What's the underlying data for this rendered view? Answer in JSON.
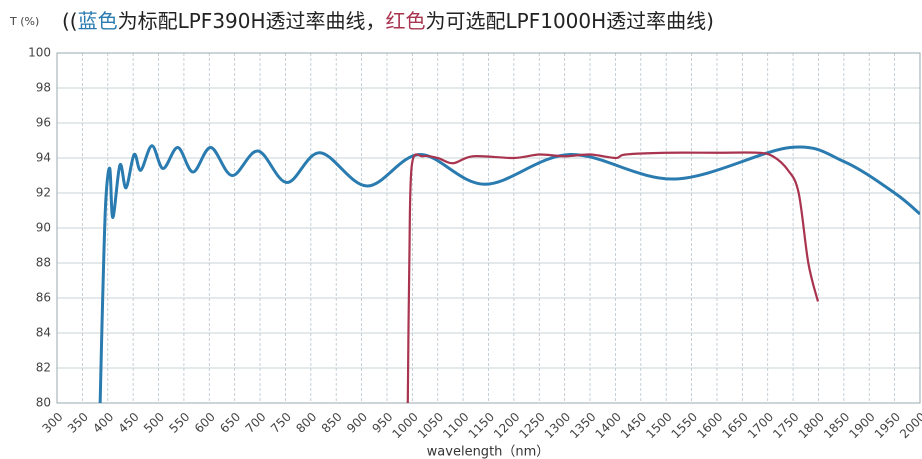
{
  "chart_data": {
    "type": "line",
    "y_label": "T (%)",
    "title_parts": [
      {
        "text": "((",
        "color": "#222222"
      },
      {
        "text": "蓝色",
        "color": "#2a7bb0"
      },
      {
        "text": "为标配LPF390H透过率曲线，",
        "color": "#222222"
      },
      {
        "text": "红色",
        "color": "#a8344f"
      },
      {
        "text": "为可选配LPF1000H透过率曲线)",
        "color": "#222222"
      }
    ],
    "x_label": "wavelength（nm）",
    "xlim": [
      300,
      2000
    ],
    "xticks": [
      300,
      350,
      400,
      450,
      500,
      550,
      600,
      650,
      700,
      750,
      800,
      850,
      900,
      950,
      1000,
      1050,
      1100,
      1150,
      1200,
      1250,
      1300,
      1350,
      1400,
      1450,
      1500,
      1550,
      1600,
      1650,
      1700,
      1750,
      1800,
      1850,
      1900,
      1950,
      2000
    ],
    "ylim": [
      80,
      100
    ],
    "yticks": [
      80,
      82,
      84,
      86,
      88,
      90,
      92,
      94,
      96,
      98,
      100
    ],
    "grid": true,
    "series": [
      {
        "name": "LPF390H",
        "color": "#2a7bb0",
        "x": [
          385,
          390,
          396,
          404,
          410,
          424,
          436,
          452,
          465,
          487,
          509,
          538,
          568,
          603,
          645,
          696,
          753,
          818,
          911,
          1015,
          1143,
          1311,
          1517,
          1744,
          1850,
          1950,
          2000
        ],
        "values": [
          80,
          86,
          91.5,
          93.4,
          90.6,
          93.6,
          92.3,
          94.2,
          93.3,
          94.7,
          93.4,
          94.6,
          93.2,
          94.6,
          93.0,
          94.4,
          92.6,
          94.3,
          92.4,
          94.2,
          92.5,
          94.2,
          92.8,
          94.6,
          93.8,
          92.0,
          90.8
        ]
      },
      {
        "name": "LPF1000H",
        "color": "#a8344f",
        "x": [
          991,
          994,
          999,
          1021,
          1050,
          1080,
          1120,
          1200,
          1250,
          1300,
          1350,
          1400,
          1420,
          1500,
          1600,
          1680,
          1710,
          1740,
          1761,
          1780,
          1799
        ],
        "values": [
          80,
          88,
          93.6,
          94.1,
          94.0,
          93.7,
          94.1,
          94.0,
          94.2,
          94.1,
          94.2,
          94.0,
          94.2,
          94.3,
          94.3,
          94.3,
          94.1,
          93.3,
          92.0,
          88.0,
          85.8
        ]
      }
    ]
  }
}
